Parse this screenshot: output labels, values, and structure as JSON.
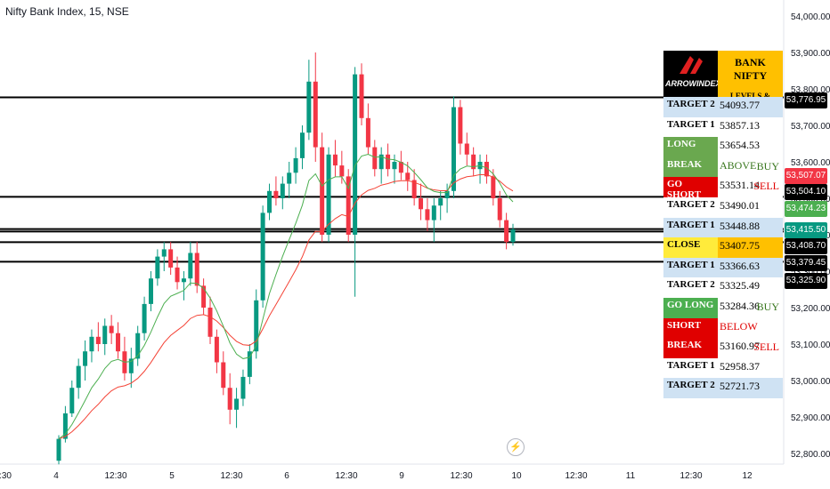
{
  "title": "Nifty Bank Index, 15, NSE",
  "colors": {
    "up": "#089981",
    "down": "#f23645",
    "ema_fast": "#4caf50",
    "ema_slow": "#f44336",
    "level_line": "#000000"
  },
  "price_axis": {
    "ticks": [
      "54,000.00",
      "53,900.00",
      "53,800.00",
      "53,700.00",
      "53,600.00",
      "53,500.00",
      "53,400.00",
      "53,300.00",
      "53,200.00",
      "53,100.00",
      "53,000.00",
      "52,900.00",
      "52,800.00"
    ]
  },
  "time_axis": {
    "ticks": [
      ":30",
      "4",
      "12:30",
      "5",
      "12:30",
      "6",
      "12:30",
      "9",
      "12:30",
      "10",
      "12:30",
      "11",
      "12:30",
      "12"
    ]
  },
  "axis_tags": [
    {
      "text": "53,776.95",
      "color": "#000000"
    },
    {
      "text": "53,507.07",
      "color": "#f23645"
    },
    {
      "text": "53,504.10",
      "color": "#000000"
    },
    {
      "text": "53,474.23",
      "color": "#4caf50"
    },
    {
      "text": "53,415.50",
      "color": "#089981"
    },
    {
      "text": "53,408.70",
      "color": "#000000"
    },
    {
      "text": "53,379.45",
      "color": "#000000"
    },
    {
      "text": "53,325.90",
      "color": "#000000"
    }
  ],
  "levels_panel": {
    "brand": "ARROWINDEX",
    "header1": "BANK NIFTY",
    "header2": "LEVELS & TARGETS",
    "rows": [
      {
        "label": "TARGET 2",
        "value": "54093.77",
        "tag": "",
        "style": "plain"
      },
      {
        "label": "TARGET 1",
        "value": "53857.13",
        "tag": "",
        "style": "plain"
      },
      {
        "label": "LONG",
        "value": "53654.53",
        "tag": "",
        "style": "green"
      },
      {
        "label": "BREAK",
        "value": "ABOVE",
        "tag": "BUY",
        "style": "green"
      },
      {
        "label": "GO SHORT",
        "value": "53531.14",
        "tag": "SELL",
        "style": "redbtn"
      },
      {
        "label": "TARGET 2",
        "value": "53490.01",
        "tag": "",
        "style": "plain"
      },
      {
        "label": "TARGET 1",
        "value": "53448.88",
        "tag": "",
        "style": "plain"
      },
      {
        "label": "CLOSE",
        "value": "53407.75",
        "tag": "",
        "style": "close"
      },
      {
        "label": "TARGET 1",
        "value": "53366.63",
        "tag": "",
        "style": "plain"
      },
      {
        "label": "TARGET 2",
        "value": "53325.49",
        "tag": "",
        "style": "plain"
      },
      {
        "label": "GO LONG",
        "value": "53284.36",
        "tag": "BUY",
        "style": "greenbtn"
      },
      {
        "label": "SHORT",
        "value": "BELOW",
        "tag": "",
        "style": "red"
      },
      {
        "label": "BREAK",
        "value": "53160.97",
        "tag": "SELL",
        "style": "red"
      },
      {
        "label": "TARGET 1",
        "value": "52958.37",
        "tag": "",
        "style": "plain"
      },
      {
        "label": "TARGET 2",
        "value": "52721.73",
        "tag": "",
        "style": "plain"
      }
    ]
  },
  "chart_data": {
    "type": "candlestick",
    "ylim": [
      52780,
      54020
    ],
    "horizontal_levels": [
      53776.95,
      53504.1,
      53415.5,
      53408.7,
      53379.45,
      53325.9
    ],
    "candles": [
      [
        52780,
        52850,
        52770,
        52840
      ],
      [
        52840,
        52930,
        52830,
        52910
      ],
      [
        52910,
        53000,
        52900,
        52980
      ],
      [
        52980,
        53060,
        52950,
        53040
      ],
      [
        53040,
        53110,
        53000,
        53080
      ],
      [
        53080,
        53140,
        53050,
        53120
      ],
      [
        53120,
        53160,
        53080,
        53100
      ],
      [
        53100,
        53170,
        53070,
        53150
      ],
      [
        53150,
        53180,
        53100,
        53130
      ],
      [
        53130,
        53160,
        53060,
        53080
      ],
      [
        53080,
        53120,
        53000,
        53020
      ],
      [
        53020,
        53090,
        52980,
        53060
      ],
      [
        53060,
        53150,
        53040,
        53130
      ],
      [
        53130,
        53230,
        53110,
        53210
      ],
      [
        53210,
        53300,
        53190,
        53280
      ],
      [
        53280,
        53360,
        53260,
        53340
      ],
      [
        53340,
        53380,
        53300,
        53360
      ],
      [
        53360,
        53380,
        53290,
        53310
      ],
      [
        53310,
        53340,
        53250,
        53270
      ],
      [
        53270,
        53300,
        53220,
        53280
      ],
      [
        53280,
        53380,
        53260,
        53350
      ],
      [
        53350,
        53380,
        53240,
        53260
      ],
      [
        53260,
        53280,
        53180,
        53200
      ],
      [
        53200,
        53230,
        53100,
        53120
      ],
      [
        53120,
        53140,
        53020,
        53050
      ],
      [
        53050,
        53080,
        52960,
        52980
      ],
      [
        52980,
        53020,
        52880,
        52920
      ],
      [
        52920,
        52980,
        52870,
        52950
      ],
      [
        52950,
        53030,
        52930,
        53010
      ],
      [
        53010,
        53100,
        52990,
        53080
      ],
      [
        53080,
        53250,
        53060,
        53220
      ],
      [
        53220,
        53480,
        53200,
        53460
      ],
      [
        53460,
        53540,
        53440,
        53520
      ],
      [
        53520,
        53560,
        53480,
        53500
      ],
      [
        53500,
        53560,
        53470,
        53540
      ],
      [
        53540,
        53600,
        53500,
        53570
      ],
      [
        53570,
        53640,
        53540,
        53610
      ],
      [
        53610,
        53700,
        53580,
        53680
      ],
      [
        53680,
        53880,
        53660,
        53820
      ],
      [
        53820,
        53900,
        53600,
        53640
      ],
      [
        53640,
        53680,
        53380,
        53400
      ],
      [
        53400,
        53640,
        53380,
        53620
      ],
      [
        53620,
        53660,
        53560,
        53590
      ],
      [
        53590,
        53630,
        53540,
        53560
      ],
      [
        53560,
        53580,
        53380,
        53400
      ],
      [
        53400,
        53860,
        53230,
        53840
      ],
      [
        53840,
        53870,
        53700,
        53720
      ],
      [
        53720,
        53760,
        53620,
        53640
      ],
      [
        53640,
        53660,
        53560,
        53580
      ],
      [
        53580,
        53640,
        53540,
        53620
      ],
      [
        53620,
        53650,
        53560,
        53580
      ],
      [
        53580,
        53620,
        53540,
        53600
      ],
      [
        53600,
        53630,
        53550,
        53570
      ],
      [
        53570,
        53600,
        53520,
        53550
      ],
      [
        53550,
        53580,
        53480,
        53500
      ],
      [
        53500,
        53540,
        53440,
        53470
      ],
      [
        53470,
        53500,
        53410,
        53440
      ],
      [
        53440,
        53500,
        53380,
        53480
      ],
      [
        53480,
        53520,
        53440,
        53500
      ],
      [
        53500,
        53540,
        53460,
        53520
      ],
      [
        53520,
        53780,
        53500,
        53750
      ],
      [
        53750,
        53770,
        53620,
        53650
      ],
      [
        53650,
        53680,
        53590,
        53620
      ],
      [
        53620,
        53640,
        53560,
        53580
      ],
      [
        53580,
        53620,
        53540,
        53600
      ],
      [
        53600,
        53620,
        53540,
        53560
      ],
      [
        53560,
        53580,
        53480,
        53500
      ],
      [
        53500,
        53520,
        53420,
        53440
      ],
      [
        53440,
        53460,
        53360,
        53380
      ],
      [
        53380,
        53430,
        53370,
        53415
      ]
    ]
  }
}
